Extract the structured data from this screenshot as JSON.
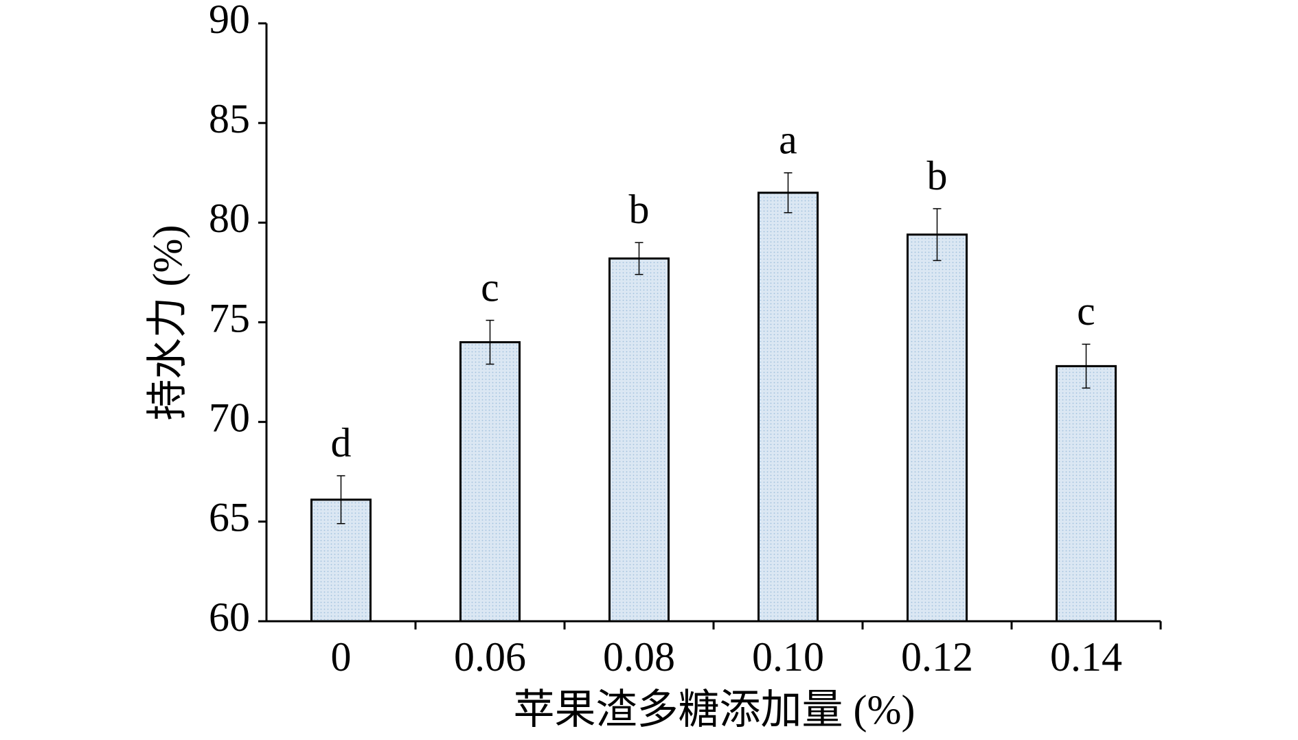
{
  "chart_data": {
    "type": "bar",
    "y_label": "持水力 (%)",
    "x_label": "苹果渣多糖添加量 (%)",
    "categories": [
      "0",
      "0.06",
      "0.08",
      "0.10",
      "0.12",
      "0.14"
    ],
    "values": [
      66.1,
      74.0,
      78.2,
      81.5,
      79.4,
      72.8
    ],
    "errors": [
      1.2,
      1.1,
      0.8,
      1.0,
      1.3,
      1.1
    ],
    "letters": [
      "d",
      "c",
      "b",
      "a",
      "b",
      "c"
    ],
    "color": "#dbe7f3",
    "ylim": [
      60,
      90
    ],
    "yticks": [
      60,
      65,
      70,
      75,
      80,
      85,
      90
    ],
    "grid": false
  }
}
